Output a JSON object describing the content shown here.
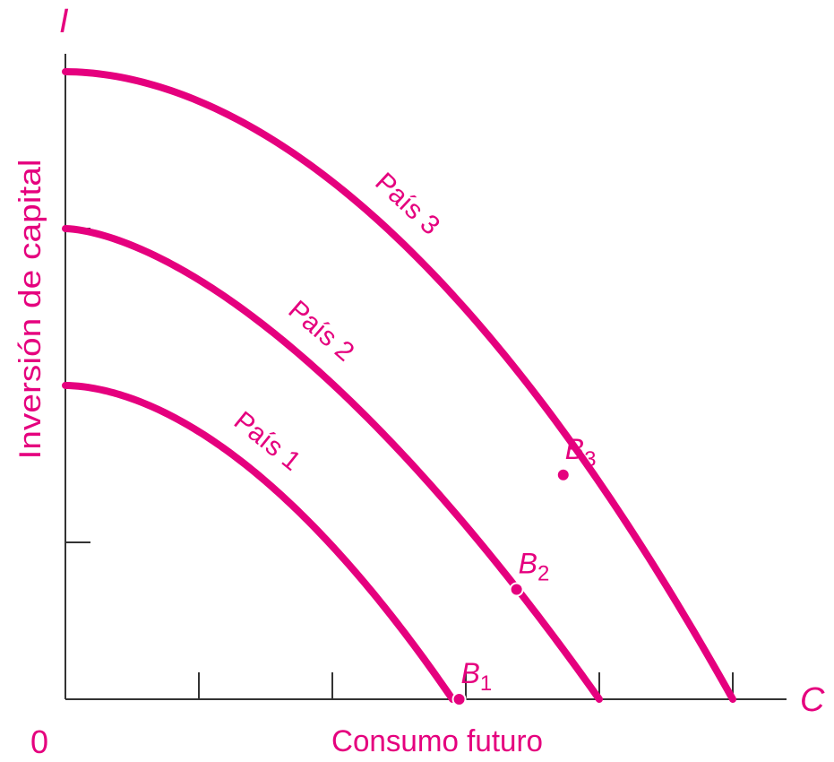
{
  "chart_data": {
    "type": "line",
    "title": "",
    "axis_letters": {
      "y": "I",
      "x": "C",
      "origin": "0"
    },
    "xlabel": "Consumo futuro",
    "ylabel": "Inversión de capital",
    "xlim": [
      0,
      5.2
    ],
    "ylim": [
      0,
      4.1
    ],
    "x_ticks": [
      0,
      1,
      2,
      3,
      4,
      5
    ],
    "y_ticks": [
      0,
      1,
      2,
      3,
      4
    ],
    "grid": false,
    "legend": "none",
    "color": "#e5007e",
    "series": [
      {
        "name": "País 1",
        "intercepts": {
          "y": 2,
          "x": 2.9
        },
        "curvature": 1.8,
        "point": {
          "label_main": "B",
          "label_sub": "1",
          "x": 2.95,
          "y": 0
        }
      },
      {
        "name": "País 2",
        "intercepts": {
          "y": 3,
          "x": 4
        },
        "curvature": 1.6,
        "point": {
          "label_main": "B",
          "label_sub": "2",
          "x": 3.38,
          "y": 0.7
        }
      },
      {
        "name": "País 3",
        "intercepts": {
          "y": 4,
          "x": 5
        },
        "curvature": 1.9,
        "point": {
          "label_main": "B",
          "label_sub": "3",
          "x": 3.73,
          "y": 1.43
        }
      }
    ]
  }
}
